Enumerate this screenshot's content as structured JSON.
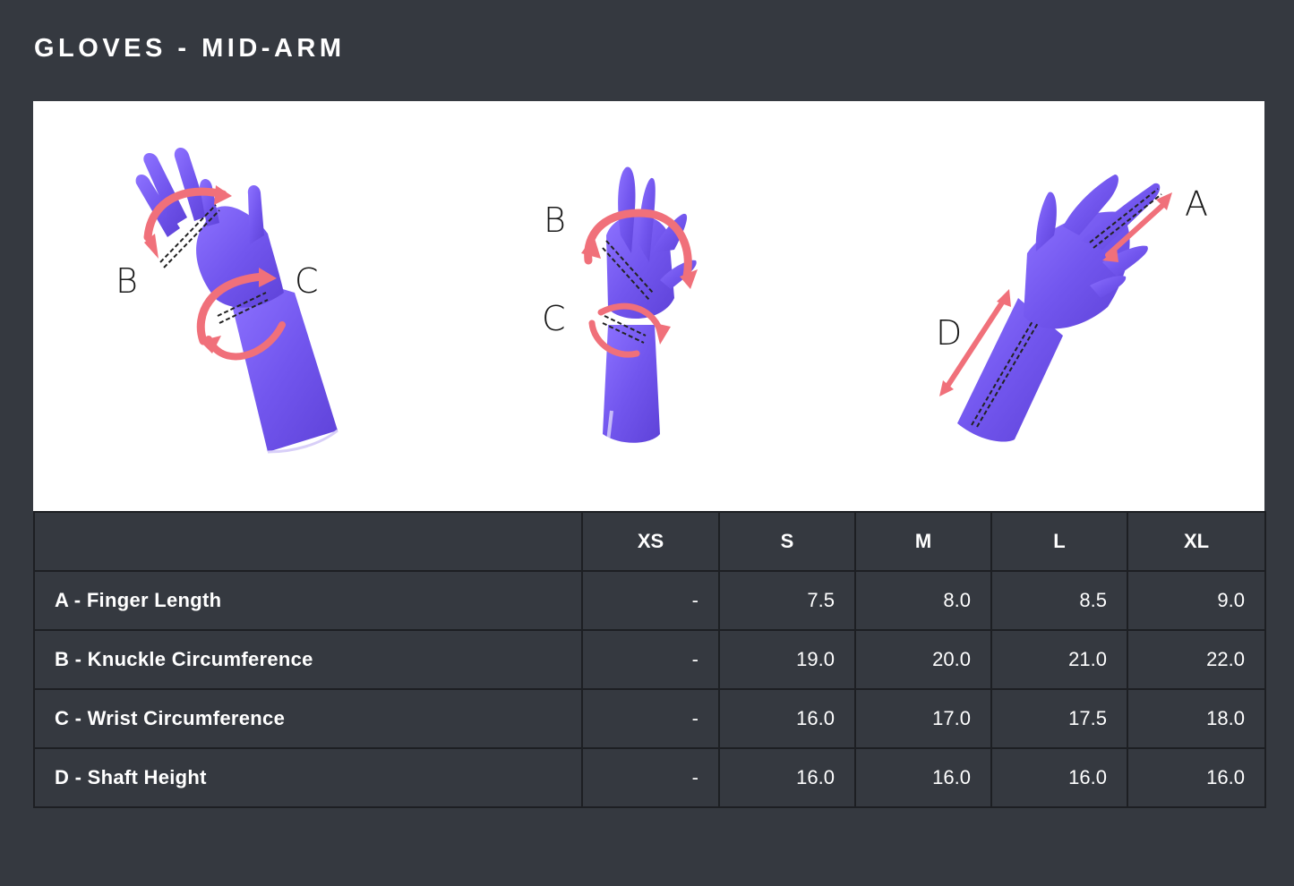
{
  "page": {
    "title": "GLOVES - MID-ARM"
  },
  "diagram": {
    "glove_color": "#7a5bf2",
    "arrow_color": "#f0707a",
    "labels": {
      "left_b": "B",
      "left_c": "C",
      "center_b": "B",
      "center_c": "C",
      "right_a": "A",
      "right_d": "D"
    }
  },
  "table": {
    "columns": [
      "",
      "XS",
      "S",
      "M",
      "L",
      "XL"
    ],
    "rows": [
      {
        "label": "A - Finger Length",
        "values": [
          "-",
          "7.5",
          "8.0",
          "8.5",
          "9.0"
        ]
      },
      {
        "label": "B - Knuckle Circumference",
        "values": [
          "-",
          "19.0",
          "20.0",
          "21.0",
          "22.0"
        ]
      },
      {
        "label": "C - Wrist Circumference",
        "values": [
          "-",
          "16.0",
          "17.0",
          "17.5",
          "18.0"
        ]
      },
      {
        "label": "D - Shaft Height",
        "values": [
          "-",
          "16.0",
          "16.0",
          "16.0",
          "16.0"
        ]
      }
    ]
  }
}
